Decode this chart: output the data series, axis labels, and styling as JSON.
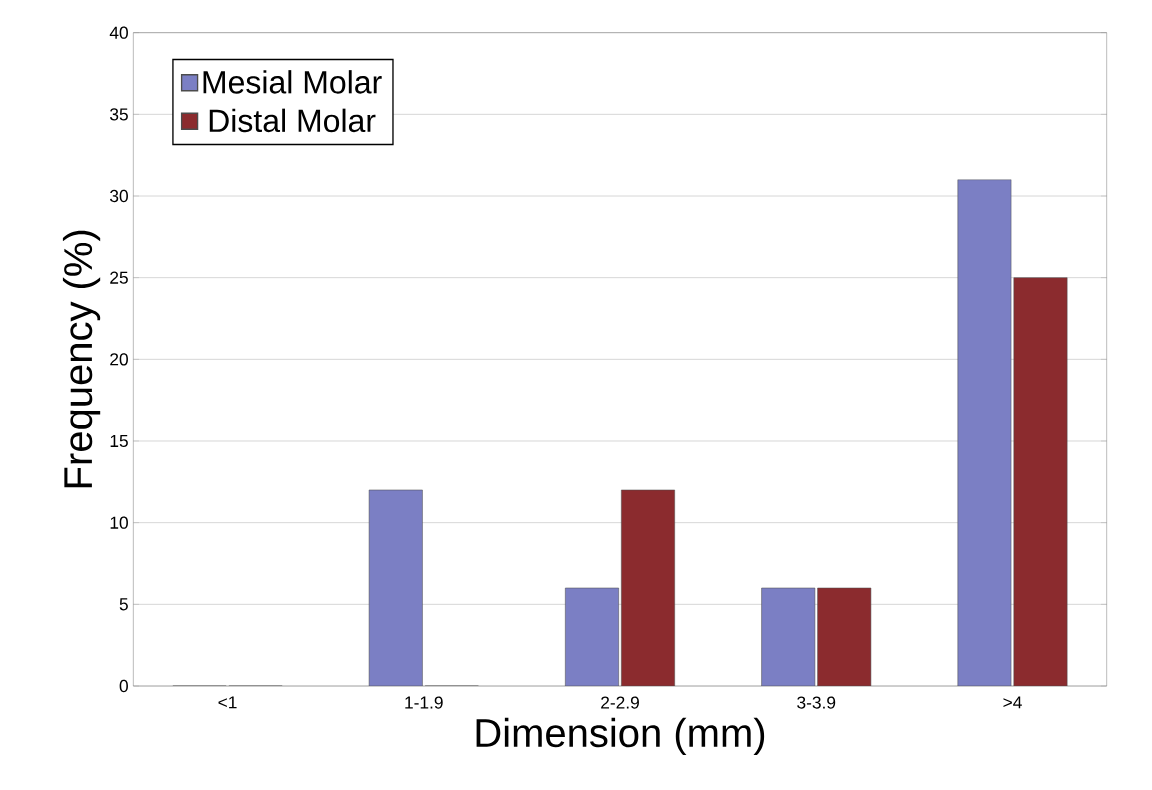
{
  "chart_data": {
    "type": "bar",
    "xlabel": "Dimension (mm)",
    "ylabel": "Frequency (%)",
    "categories": [
      "<1",
      "1-1.9",
      "2-2.9",
      "3-3.9",
      ">4"
    ],
    "series": [
      {
        "name": "Mesial Molar",
        "color": "#7b7fc4",
        "values": [
          0,
          12,
          6,
          6,
          31
        ]
      },
      {
        "name": "Distal Molar",
        "color": "#8b2b2e",
        "values": [
          0,
          0,
          12,
          6,
          25
        ]
      }
    ],
    "ylim": [
      0,
      40
    ],
    "yticks": [
      0,
      5,
      10,
      15,
      20,
      25,
      30,
      35,
      40
    ],
    "grid": "y",
    "legend": "top left"
  }
}
